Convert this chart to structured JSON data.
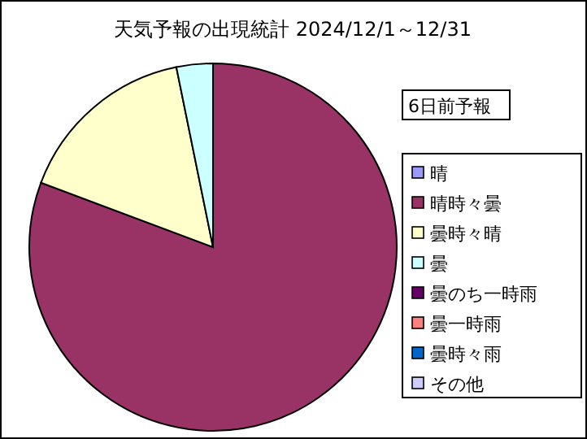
{
  "chart_data": {
    "type": "pie",
    "title": "天気予報の出現統計 2024/12/1～12/31",
    "legend_title": "6日前予報",
    "legend": "right",
    "categories": [
      "晴",
      "晴時々曇",
      "曇時々晴",
      "曇",
      "曇のち一時雨",
      "曇一時雨",
      "曇時々雨",
      "その他"
    ],
    "values": [
      0,
      80.7,
      16.1,
      3.2,
      0,
      0,
      0,
      0
    ],
    "colors": [
      "#9999ff",
      "#993366",
      "#ffffcc",
      "#ccffff",
      "#660066",
      "#ff8080",
      "#0066cc",
      "#ccccff"
    ]
  }
}
